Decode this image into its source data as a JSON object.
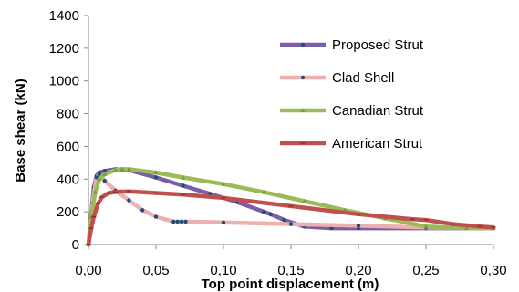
{
  "chart_data": {
    "type": "line",
    "title": "",
    "xlabel": "Top point displacement (m)",
    "ylabel": "Base shear (kN)",
    "xlim": [
      0,
      0.3
    ],
    "ylim": [
      0,
      1400
    ],
    "x_ticks": [
      0,
      0.05,
      0.1,
      0.15,
      0.2,
      0.25,
      0.3
    ],
    "x_tick_labels": [
      "0,00",
      "0,05",
      "0,10",
      "0,15",
      "0,20",
      "0,25",
      "0,30"
    ],
    "y_ticks": [
      0,
      200,
      400,
      600,
      800,
      1000,
      1200,
      1400
    ],
    "y_tick_labels": [
      "0",
      "200",
      "400",
      "600",
      "800",
      "1000",
      "1200",
      "1400"
    ],
    "grid": false,
    "legend_position": "upper-right",
    "series": [
      {
        "name": "Proposed Strut",
        "color": "#7B5FA6",
        "marker": "dot",
        "points": [
          [
            0,
            0
          ],
          [
            0.002,
            190
          ],
          [
            0.004,
            350
          ],
          [
            0.006,
            420
          ],
          [
            0.008,
            440
          ],
          [
            0.012,
            450
          ],
          [
            0.02,
            460
          ],
          [
            0.03,
            455
          ],
          [
            0.05,
            410
          ],
          [
            0.07,
            360
          ],
          [
            0.09,
            310
          ],
          [
            0.11,
            260
          ],
          [
            0.13,
            200
          ],
          [
            0.135,
            185
          ],
          [
            0.145,
            150
          ],
          [
            0.16,
            110
          ],
          [
            0.18,
            100
          ],
          [
            0.2,
            100
          ],
          [
            0.25,
            100
          ],
          [
            0.3,
            100
          ]
        ]
      },
      {
        "name": "Clad Shell",
        "color": "#EDB0B0",
        "marker": "dot",
        "points": [
          [
            0,
            0
          ],
          [
            0.003,
            250
          ],
          [
            0.006,
            410
          ],
          [
            0.008,
            430
          ],
          [
            0.012,
            390
          ],
          [
            0.02,
            330
          ],
          [
            0.03,
            270
          ],
          [
            0.04,
            210
          ],
          [
            0.05,
            170
          ],
          [
            0.063,
            140
          ],
          [
            0.066,
            140
          ],
          [
            0.069,
            140
          ],
          [
            0.072,
            140
          ],
          [
            0.1,
            135
          ],
          [
            0.15,
            125
          ],
          [
            0.2,
            115
          ],
          [
            0.25,
            105
          ],
          [
            0.3,
            100
          ]
        ]
      },
      {
        "name": "Canadian Strut",
        "color": "#9BBB59",
        "marker": "triangle",
        "points": [
          [
            0,
            0
          ],
          [
            0.002,
            170
          ],
          [
            0.005,
            320
          ],
          [
            0.008,
            400
          ],
          [
            0.012,
            430
          ],
          [
            0.02,
            455
          ],
          [
            0.025,
            462
          ],
          [
            0.03,
            460
          ],
          [
            0.05,
            440
          ],
          [
            0.07,
            410
          ],
          [
            0.1,
            370
          ],
          [
            0.13,
            320
          ],
          [
            0.16,
            265
          ],
          [
            0.19,
            210
          ],
          [
            0.22,
            160
          ],
          [
            0.25,
            110
          ],
          [
            0.28,
            100
          ],
          [
            0.3,
            100
          ]
        ]
      },
      {
        "name": "American Strut",
        "color": "#C0504D",
        "marker": "dash",
        "points": [
          [
            0,
            0
          ],
          [
            0.002,
            100
          ],
          [
            0.004,
            170
          ],
          [
            0.007,
            250
          ],
          [
            0.01,
            290
          ],
          [
            0.015,
            315
          ],
          [
            0.02,
            322
          ],
          [
            0.03,
            325
          ],
          [
            0.05,
            315
          ],
          [
            0.07,
            305
          ],
          [
            0.1,
            285
          ],
          [
            0.15,
            235
          ],
          [
            0.2,
            185
          ],
          [
            0.24,
            155
          ],
          [
            0.25,
            150
          ],
          [
            0.27,
            125
          ],
          [
            0.29,
            110
          ],
          [
            0.3,
            105
          ]
        ]
      }
    ]
  }
}
